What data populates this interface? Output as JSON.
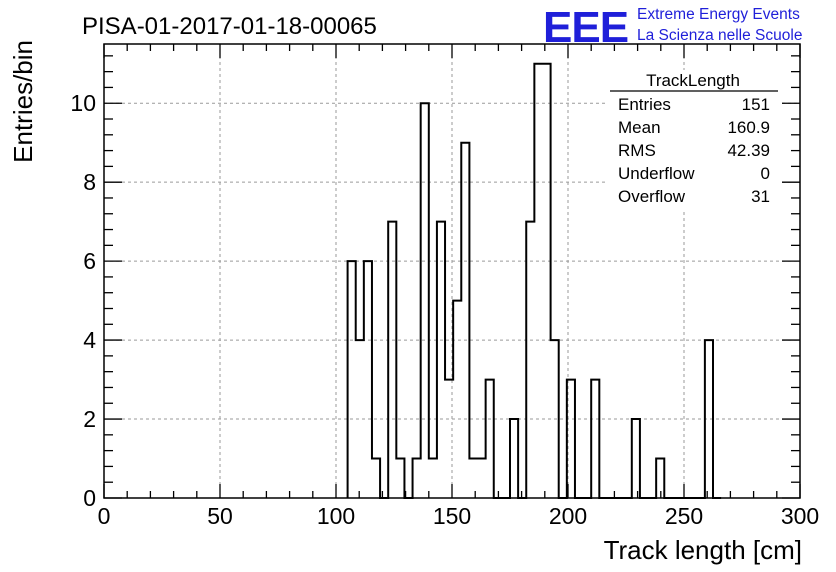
{
  "header": {
    "run_title": "PISA-01-2017-01-18-00065",
    "logo_letters": "EEE",
    "logo_line1": "Extreme Energy Events",
    "logo_line2": "La Scienza nelle Scuole",
    "logo_color": "#1f1fd9"
  },
  "stats_box": {
    "title": "TrackLength",
    "rows": [
      {
        "label": "Entries",
        "value": "151"
      },
      {
        "label": "Mean",
        "value": "160.9"
      },
      {
        "label": "RMS",
        "value": "42.39"
      },
      {
        "label": "Underflow",
        "value": "0"
      },
      {
        "label": "Overflow",
        "value": "31"
      }
    ]
  },
  "chart_data": {
    "type": "bar",
    "style": "step-histogram",
    "xlabel": "Track length [cm]",
    "ylabel": "Entries/bin",
    "xlim": [
      0,
      300
    ],
    "ylim": [
      0,
      11.5
    ],
    "x_ticks": [
      0,
      50,
      100,
      150,
      200,
      250,
      300
    ],
    "y_ticks": [
      0,
      2,
      4,
      6,
      8,
      10
    ],
    "grid": true,
    "bin_width": 3.5,
    "bins": [
      {
        "x": 105,
        "value": 6
      },
      {
        "x": 108.5,
        "value": 4
      },
      {
        "x": 112,
        "value": 6
      },
      {
        "x": 115.5,
        "value": 1
      },
      {
        "x": 119,
        "value": 0
      },
      {
        "x": 122.5,
        "value": 7
      },
      {
        "x": 126,
        "value": 1
      },
      {
        "x": 129.5,
        "value": 0
      },
      {
        "x": 133,
        "value": 1
      },
      {
        "x": 136.5,
        "value": 10
      },
      {
        "x": 140,
        "value": 1
      },
      {
        "x": 143.5,
        "value": 7
      },
      {
        "x": 147,
        "value": 3
      },
      {
        "x": 150.5,
        "value": 5
      },
      {
        "x": 154,
        "value": 9
      },
      {
        "x": 157.5,
        "value": 1
      },
      {
        "x": 161,
        "value": 1
      },
      {
        "x": 164.5,
        "value": 3
      },
      {
        "x": 168,
        "value": 0
      },
      {
        "x": 171.5,
        "value": 0
      },
      {
        "x": 175,
        "value": 2
      },
      {
        "x": 178.5,
        "value": 0
      },
      {
        "x": 182,
        "value": 7
      },
      {
        "x": 185.5,
        "value": 11
      },
      {
        "x": 189,
        "value": 11
      },
      {
        "x": 192.5,
        "value": 4
      },
      {
        "x": 196,
        "value": 0
      },
      {
        "x": 199.5,
        "value": 3
      },
      {
        "x": 203,
        "value": 0
      },
      {
        "x": 206.5,
        "value": 0
      },
      {
        "x": 210,
        "value": 3
      },
      {
        "x": 213.5,
        "value": 0
      },
      {
        "x": 217,
        "value": 0
      },
      {
        "x": 220.5,
        "value": 0
      },
      {
        "x": 224,
        "value": 0
      },
      {
        "x": 227.5,
        "value": 2
      },
      {
        "x": 231,
        "value": 0
      },
      {
        "x": 234.5,
        "value": 0
      },
      {
        "x": 238,
        "value": 1
      },
      {
        "x": 241.5,
        "value": 0
      },
      {
        "x": 245,
        "value": 0
      },
      {
        "x": 248.5,
        "value": 0
      },
      {
        "x": 252,
        "value": 0
      },
      {
        "x": 255.5,
        "value": 0
      },
      {
        "x": 259,
        "value": 4
      },
      {
        "x": 262.5,
        "value": 0
      }
    ],
    "line_color": "#000000",
    "grid_color": "#9a9a9a"
  }
}
